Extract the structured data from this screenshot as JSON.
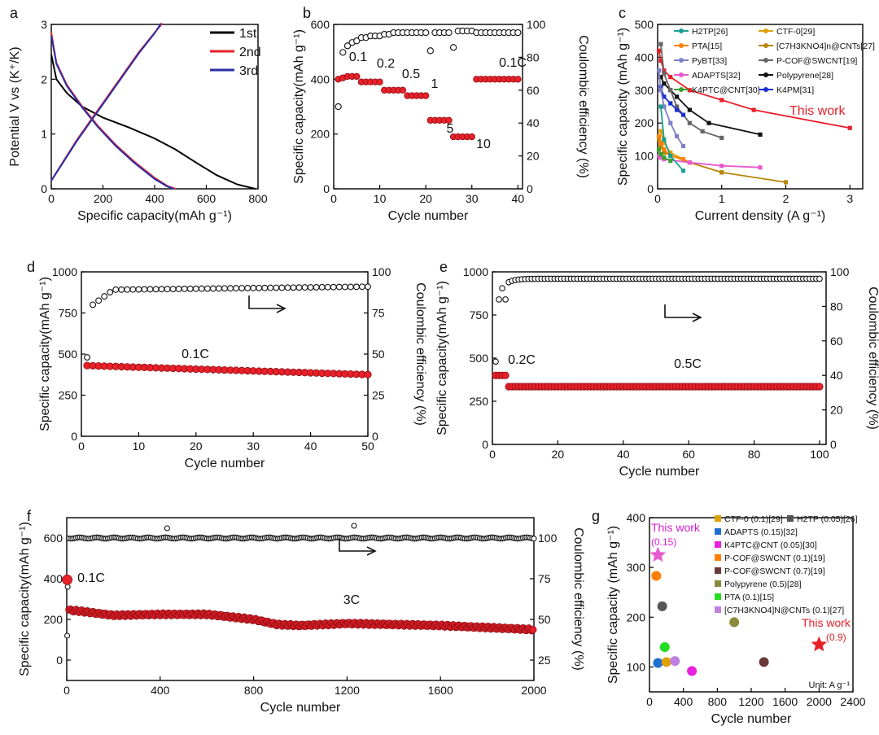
{
  "panels": {
    "a": {
      "label": "a",
      "type": "line",
      "xlabel": "Specific capacity(mAh g⁻¹)",
      "ylabel": "Potential V vs (K⁺/K)",
      "xlim": [
        0,
        800
      ],
      "ylim": [
        0,
        3
      ],
      "xticks": [
        "0",
        "200",
        "400",
        "600",
        "800"
      ],
      "yticks": [
        "0",
        "1",
        "2",
        "3"
      ],
      "legend": [
        "1st",
        "2nd",
        "3rd"
      ],
      "colors": [
        "#000000",
        "#e8202a",
        "#2b2fa8"
      ],
      "series": [
        {
          "name": "1st discharge",
          "color": "#000000",
          "x": [
            0,
            20,
            60,
            120,
            200,
            300,
            400,
            480,
            560,
            640,
            720,
            790
          ],
          "y": [
            2.45,
            2.0,
            1.75,
            1.5,
            1.3,
            1.12,
            0.92,
            0.72,
            0.48,
            0.25,
            0.08,
            0.0
          ]
        },
        {
          "name": "2nd discharge",
          "color": "#e8202a",
          "x": [
            0,
            20,
            60,
            120,
            180,
            250,
            320,
            400,
            450,
            480
          ],
          "y": [
            2.85,
            2.3,
            1.9,
            1.5,
            1.15,
            0.8,
            0.5,
            0.2,
            0.05,
            0.0
          ]
        },
        {
          "name": "3rd discharge",
          "color": "#2b2fa8",
          "x": [
            0,
            20,
            60,
            120,
            180,
            250,
            320,
            400,
            450,
            475
          ],
          "y": [
            2.8,
            2.28,
            1.88,
            1.48,
            1.13,
            0.78,
            0.48,
            0.18,
            0.04,
            0.0
          ]
        },
        {
          "name": "2nd charge",
          "color": "#e8202a",
          "x": [
            0,
            40,
            100,
            160,
            220,
            280,
            340,
            400,
            430
          ],
          "y": [
            0.15,
            0.45,
            0.9,
            1.3,
            1.7,
            2.1,
            2.5,
            2.85,
            3.02
          ]
        },
        {
          "name": "3rd charge",
          "color": "#2b2fa8",
          "x": [
            0,
            40,
            100,
            160,
            220,
            280,
            340,
            400,
            425
          ],
          "y": [
            0.15,
            0.44,
            0.88,
            1.28,
            1.68,
            2.08,
            2.48,
            2.84,
            3.02
          ]
        }
      ]
    },
    "b": {
      "label": "b",
      "type": "scatter",
      "xlabel": "Cycle number",
      "ylabel": "Specific capacity(mAh g⁻¹)",
      "y2label": "Coulombic efficiency (%)",
      "xlim": [
        0,
        41
      ],
      "ylim": [
        0,
        600
      ],
      "y2lim": [
        0,
        100
      ],
      "xticks": [
        "0",
        "10",
        "20",
        "30",
        "40"
      ],
      "yticks": [
        "0",
        "200",
        "400",
        "600"
      ],
      "y2ticks": [
        "0",
        "20",
        "40",
        "60",
        "80",
        "100"
      ],
      "annotations": [
        "0.1",
        "0.2",
        "0.5",
        "1",
        "5",
        "10",
        "0.1C"
      ],
      "capacity_x": [
        1,
        2,
        3,
        4,
        5,
        6,
        7,
        8,
        9,
        10,
        11,
        12,
        13,
        14,
        15,
        16,
        17,
        18,
        19,
        20,
        21,
        22,
        23,
        24,
        25,
        26,
        27,
        28,
        29,
        30,
        31,
        32,
        33,
        34,
        35,
        36,
        37,
        38,
        39,
        40
      ],
      "capacity_y": [
        400,
        405,
        410,
        410,
        410,
        390,
        390,
        390,
        390,
        390,
        360,
        360,
        360,
        360,
        360,
        340,
        340,
        340,
        340,
        340,
        250,
        250,
        250,
        250,
        250,
        190,
        190,
        190,
        190,
        190,
        400,
        400,
        400,
        400,
        400,
        400,
        400,
        400,
        400,
        400
      ],
      "ce_x": [
        1,
        2,
        3,
        4,
        5,
        6,
        7,
        8,
        9,
        10,
        11,
        12,
        13,
        14,
        15,
        16,
        17,
        18,
        19,
        20,
        21,
        22,
        23,
        24,
        25,
        26,
        27,
        28,
        29,
        30,
        31,
        32,
        33,
        34,
        35,
        36,
        37,
        38,
        39,
        40
      ],
      "ce_y": [
        50,
        83,
        87,
        89,
        90,
        92,
        92,
        93,
        93,
        93,
        94,
        94,
        95,
        95,
        95,
        95,
        95,
        95,
        95,
        95,
        84,
        95,
        95,
        95,
        95,
        86,
        96,
        96,
        96,
        96,
        95,
        95,
        95,
        95,
        95,
        95,
        95,
        95,
        95,
        95
      ]
    },
    "c": {
      "label": "c",
      "type": "line",
      "xlabel": "Current density (A g⁻¹)",
      "ylabel": "Specific capacity (mAh g⁻¹)",
      "xlim": [
        0,
        3.2
      ],
      "ylim": [
        0,
        500
      ],
      "xticks": [
        "0",
        "1",
        "2",
        "3"
      ],
      "yticks": [
        "0",
        "100",
        "200",
        "300",
        "400",
        "500"
      ],
      "annotation": "This work",
      "legend": [
        "H2TP[26]",
        "CTF-0[29]",
        "PTA[15]",
        "[C7H3KNO4]n@CNTs[27]",
        "PyBT[33]",
        "P-COF@SWCNT[19]",
        "ADAPTS[32]",
        "Polypyrene[28]",
        "K4PTC@CNT[30]",
        "K4PM[31]"
      ],
      "series": [
        {
          "name": "This work",
          "color": "#e8202a",
          "x": [
            0.02,
            0.05,
            0.1,
            0.2,
            0.5,
            1.0,
            1.5,
            3.0
          ],
          "y": [
            420,
            390,
            360,
            340,
            300,
            270,
            240,
            185
          ]
        },
        {
          "name": "Polypyrene",
          "color": "#111111",
          "x": [
            0.05,
            0.1,
            0.2,
            0.3,
            0.5,
            0.8,
            1.6
          ],
          "y": [
            340,
            320,
            300,
            280,
            240,
            200,
            165
          ]
        },
        {
          "name": "P-COF@SWCNT",
          "color": "#666666",
          "x": [
            0.05,
            0.1,
            0.2,
            0.3,
            0.5,
            0.7,
            1.0
          ],
          "y": [
            440,
            350,
            300,
            250,
            200,
            175,
            155
          ]
        },
        {
          "name": "K4PM",
          "color": "#1c2fd0",
          "x": [
            0.05,
            0.1,
            0.2,
            0.3,
            0.4
          ],
          "y": [
            310,
            280,
            260,
            240,
            225
          ]
        },
        {
          "name": "PyBT",
          "color": "#8080c8",
          "x": [
            0.02,
            0.05,
            0.1,
            0.2,
            0.3,
            0.4
          ],
          "y": [
            360,
            300,
            250,
            200,
            160,
            130
          ]
        },
        {
          "name": "CTF-0",
          "color": "#e0a000",
          "x": [
            0.05,
            0.1,
            0.2,
            0.5,
            1.0
          ],
          "y": [
            175,
            140,
            110,
            80,
            50
          ]
        },
        {
          "name": "[C7H3KNO4]n@CNTs",
          "color": "#b8860b",
          "x": [
            0.02,
            0.05,
            0.1,
            0.5,
            1.0,
            2.0
          ],
          "y": [
            150,
            130,
            110,
            80,
            50,
            20
          ]
        },
        {
          "name": "PTA",
          "color": "#ff7f00",
          "x": [
            0.02,
            0.05,
            0.1,
            0.2,
            0.4
          ],
          "y": [
            160,
            140,
            120,
            100,
            90
          ]
        },
        {
          "name": "ADAPTS",
          "color": "#e85ad0",
          "x": [
            0.02,
            0.05,
            0.1,
            0.5,
            1.0,
            1.6
          ],
          "y": [
            100,
            95,
            90,
            80,
            70,
            65
          ]
        },
        {
          "name": "H2TP",
          "color": "#1aa090",
          "x": [
            0.05,
            0.1,
            0.2,
            0.4
          ],
          "y": [
            250,
            150,
            100,
            55
          ]
        },
        {
          "name": "K4PTC@CNT",
          "color": "#3aa030",
          "x": [
            0.02,
            0.05,
            0.1,
            0.2
          ],
          "y": [
            120,
            105,
            95,
            85
          ]
        }
      ]
    },
    "d": {
      "label": "d",
      "type": "scatter",
      "xlabel": "Cycle number",
      "ylabel": "Specific capacity(mAh g⁻¹)",
      "y2label": "Coulombic efficiency (%)",
      "xlim": [
        0,
        50
      ],
      "ylim": [
        0,
        1000
      ],
      "y2lim": [
        0,
        100
      ],
      "xticks": [
        "0",
        "10",
        "20",
        "30",
        "40",
        "50"
      ],
      "yticks": [
        "0",
        "250",
        "500",
        "750",
        "1000"
      ],
      "y2ticks": [
        "0",
        "25",
        "50",
        "75",
        "100"
      ],
      "annotations": [
        "0.1C"
      ],
      "capacity_start": [
        430,
        430
      ],
      "capacity_end": 375,
      "ce_first": 48,
      "ce_start": 80,
      "ce_plateau": 89,
      "ce_end": 91
    },
    "e": {
      "label": "e",
      "type": "scatter",
      "xlabel": "Cycle number",
      "ylabel": "Specific capacity(mAh g⁻¹)",
      "y2label": "Coulombic efficiency (%)",
      "xlim": [
        0,
        102
      ],
      "ylim": [
        0,
        1000
      ],
      "y2lim": [
        0,
        100
      ],
      "xticks": [
        "0",
        "20",
        "40",
        "60",
        "80",
        "100"
      ],
      "yticks": [
        "0",
        "250",
        "500",
        "750",
        "1000"
      ],
      "y2ticks": [
        "0",
        "20",
        "40",
        "60",
        "80",
        "100"
      ],
      "annotations": [
        "0.2C",
        "0.5C"
      ],
      "capacity_02C": 400,
      "capacity_05C": 335,
      "ce_plateau": 96
    },
    "f": {
      "label": "f",
      "type": "scatter",
      "xlabel": "Cycle number",
      "ylabel": "Specific capacity(mAh g⁻¹)",
      "y2label": "Coulombic efficiency (%)",
      "xlim": [
        0,
        2000
      ],
      "ylim": [
        -100,
        700
      ],
      "y2lim": [
        12.5,
        112.5
      ],
      "xticks": [
        "0",
        "400",
        "800",
        "1200",
        "1600",
        "2000"
      ],
      "yticks": [
        "0",
        "200",
        "400",
        "600"
      ],
      "y2ticks": [
        "25",
        "50",
        "75",
        "100"
      ],
      "annotations": [
        "0.1C",
        "3C"
      ],
      "capacity_profile_x": [
        0,
        20,
        60,
        200,
        400,
        600,
        800,
        900,
        1000,
        1200,
        1400,
        1600,
        1800,
        2000
      ],
      "capacity_profile_y": [
        245,
        245,
        240,
        220,
        225,
        225,
        200,
        175,
        170,
        180,
        175,
        170,
        160,
        150
      ],
      "ce_plateau": 100
    },
    "g": {
      "label": "g",
      "type": "scatter",
      "xlabel": "Cycle number",
      "ylabel": "Specific capacity (mAh g⁻¹)",
      "xlim": [
        0,
        2400
      ],
      "ylim": [
        50,
        400
      ],
      "xticks": [
        "0",
        "400",
        "800",
        "1200",
        "1600",
        "2000",
        "2400"
      ],
      "yticks": [
        "100",
        "200",
        "300",
        "400"
      ],
      "unit": "Unit: A g⁻¹",
      "this_work_labels": [
        "This work",
        "(0.15)",
        "This work",
        "(0.9)"
      ],
      "legend": [
        "CTF-0 (0.1)[29]",
        "H2TP (0.05)[26]",
        "ADAPTS (0.15)[32]",
        "K4PTC@CNT (0.05)[30]",
        "P-COF@SWCNT (0.1)[19]",
        "P-COF@SWCNT (0.7)[19]",
        "Polypyrene (0.5)[28]",
        "PTA (0.1)[15]",
        "[C7H3KNO4]N@CNTs (0.1)[27]"
      ],
      "points": [
        {
          "name": "This work (0.15)",
          "x": 100,
          "y": 325,
          "color": "#e85ad0"
        },
        {
          "name": "This work (0.9)",
          "x": 2000,
          "y": 145,
          "color": "#e8202a"
        },
        {
          "name": "P-COF@SWCNT (0.1)",
          "x": 80,
          "y": 283,
          "color": "#ff7f00"
        },
        {
          "name": "H2TP (0.05)",
          "x": 150,
          "y": 222,
          "color": "#555555"
        },
        {
          "name": "Polypyrene (0.5)",
          "x": 1000,
          "y": 190,
          "color": "#8a8a3a"
        },
        {
          "name": "PTA (0.1)",
          "x": 180,
          "y": 140,
          "color": "#22dd22"
        },
        {
          "name": "ADAPTS (0.15)",
          "x": 100,
          "y": 108,
          "color": "#1f6fd0"
        },
        {
          "name": "CTF-0 (0.1)",
          "x": 200,
          "y": 110,
          "color": "#e0a000"
        },
        {
          "name": "[C7H3KNO4]N@CNTs (0.1)",
          "x": 300,
          "y": 112,
          "color": "#c080e0"
        },
        {
          "name": "K4PTC@CNT (0.05)",
          "x": 500,
          "y": 92,
          "color": "#e820e0"
        },
        {
          "name": "P-COF@SWCNT (0.7)",
          "x": 1350,
          "y": 110,
          "color": "#6a3a3a"
        }
      ]
    }
  },
  "colors": {
    "red": "#e8202a",
    "black": "#111111",
    "blue": "#2b2fa8"
  }
}
